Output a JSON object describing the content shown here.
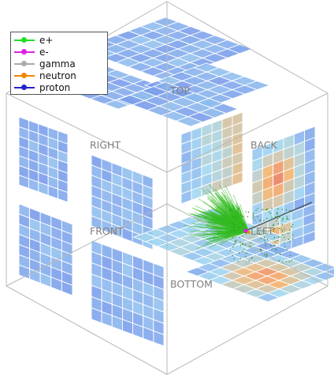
{
  "face_labels": {
    "top": "TOP",
    "right": "RIGHT",
    "back": "BACK",
    "front": "FRONT",
    "left": "LEFT",
    "bottom": "BOTTOM"
  },
  "legend": {
    "entries": [
      {
        "label": "e+",
        "color": "#22dd22"
      },
      {
        "label": "e-",
        "color": "#dd22dd"
      },
      {
        "label": "gamma",
        "color": "#aaaaaa"
      },
      {
        "label": "neutron",
        "color": "#ee8800"
      },
      {
        "label": "proton",
        "color": "#2222cc"
      }
    ]
  },
  "colors": {
    "cell_low": "#6f8fea",
    "cell_mid": "#9fd6f0",
    "cell_hot": "#f2b26b",
    "cell_max": "#e86a5a",
    "grid_line": "#ffffff",
    "cube_edge": "#b8b8b8",
    "shower": "#33bb22"
  }
}
